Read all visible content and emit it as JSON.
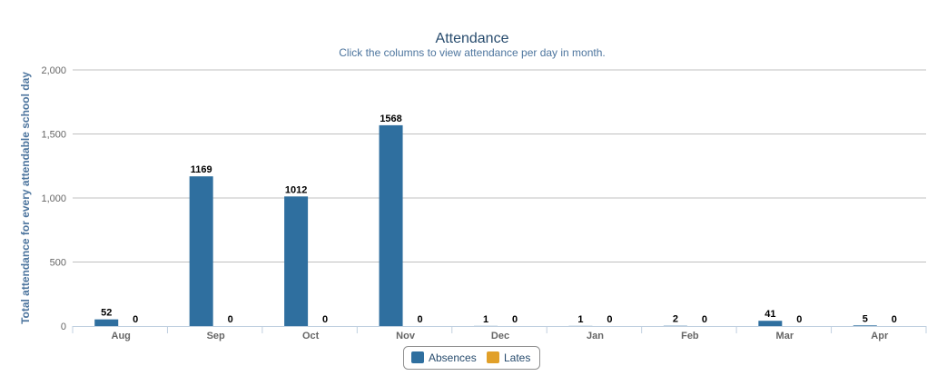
{
  "chart_data": {
    "type": "bar",
    "title": "Attendance",
    "subtitle": "Click the columns to view attendance per day in month.",
    "ylabel": "Total attendance for every attendable school day",
    "xlabel": "",
    "categories": [
      "Aug",
      "Sep",
      "Oct",
      "Nov",
      "Dec",
      "Jan",
      "Feb",
      "Mar",
      "Apr"
    ],
    "series": [
      {
        "name": "Absences",
        "color": "#2f6f9f",
        "values": [
          52,
          1169,
          1012,
          1568,
          1,
          1,
          2,
          41,
          5
        ]
      },
      {
        "name": "Lates",
        "color": "#e1a029",
        "values": [
          0,
          0,
          0,
          0,
          0,
          0,
          0,
          0,
          0
        ]
      }
    ],
    "ylim": [
      0,
      2000
    ],
    "yticks": [
      "0",
      "500",
      "1,000",
      "1,500",
      "2,000"
    ],
    "ytick_values": [
      0,
      500,
      1000,
      1500,
      2000
    ],
    "grid": true,
    "legend_placement": "bottom-center",
    "data_labels": true
  }
}
